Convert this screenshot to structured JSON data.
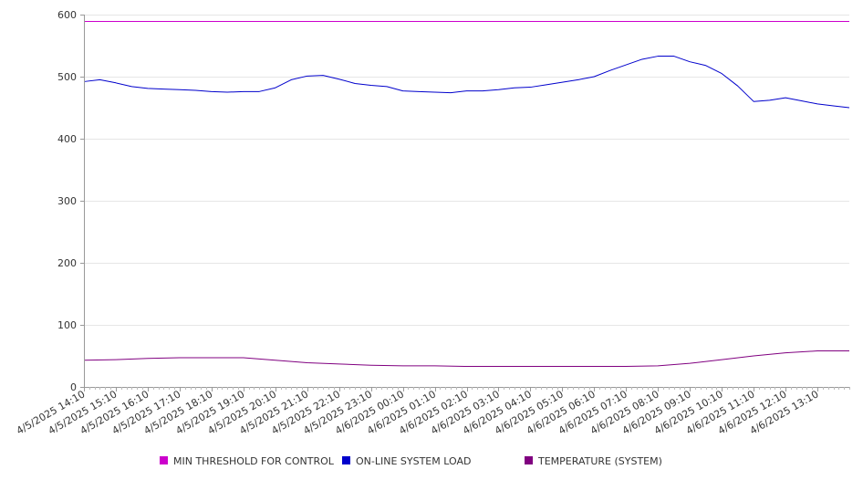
{
  "chart_data": {
    "type": "line",
    "ylim": [
      0,
      600
    ],
    "y_ticks": [
      0,
      100,
      200,
      300,
      400,
      500,
      600
    ],
    "x_range": [
      "4/5/2025 14:10",
      "4/6/2025 14:10"
    ],
    "x_tick_labels": [
      "4/5/2025 14:10",
      "4/5/2025 15:10",
      "4/5/2025 16:10",
      "4/5/2025 17:10",
      "4/5/2025 18:10",
      "4/5/2025 19:10",
      "4/5/2025 20:10",
      "4/5/2025 21:10",
      "4/5/2025 22:10",
      "4/5/2025 23:10",
      "4/6/2025 00:10",
      "4/6/2025 01:10",
      "4/6/2025 02:10",
      "4/6/2025 03:10",
      "4/6/2025 04:10",
      "4/6/2025 05:10",
      "4/6/2025 06:10",
      "4/6/2025 07:10",
      "4/6/2025 08:10",
      "4/6/2025 09:10",
      "4/6/2025 10:10",
      "4/6/2025 11:10",
      "4/6/2025 12:10",
      "4/6/2025 13:10"
    ],
    "grid": true,
    "legend_position": "bottom",
    "series": [
      {
        "name": "MIN THRESHOLD FOR CONTROL",
        "color": "#cc00cc",
        "points": [
          [
            "4/5/2025 14:10",
            589
          ],
          [
            "4/6/2025 14:10",
            589
          ]
        ]
      },
      {
        "name": "ON-LINE SYSTEM LOAD",
        "color": "#0000cc",
        "points": [
          [
            "4/5/2025 14:10",
            492
          ],
          [
            "4/5/2025 14:40",
            495
          ],
          [
            "4/5/2025 15:10",
            490
          ],
          [
            "4/5/2025 15:40",
            484
          ],
          [
            "4/5/2025 16:10",
            481
          ],
          [
            "4/5/2025 16:40",
            480
          ],
          [
            "4/5/2025 17:10",
            479
          ],
          [
            "4/5/2025 17:40",
            478
          ],
          [
            "4/5/2025 18:10",
            476
          ],
          [
            "4/5/2025 18:40",
            475
          ],
          [
            "4/5/2025 19:10",
            476
          ],
          [
            "4/5/2025 19:40",
            476
          ],
          [
            "4/5/2025 20:10",
            482
          ],
          [
            "4/5/2025 20:40",
            495
          ],
          [
            "4/5/2025 21:10",
            501
          ],
          [
            "4/5/2025 21:40",
            502
          ],
          [
            "4/5/2025 22:10",
            496
          ],
          [
            "4/5/2025 22:40",
            489
          ],
          [
            "4/5/2025 23:10",
            486
          ],
          [
            "4/5/2025 23:40",
            484
          ],
          [
            "4/6/2025 00:10",
            477
          ],
          [
            "4/6/2025 00:40",
            476
          ],
          [
            "4/6/2025 01:10",
            475
          ],
          [
            "4/6/2025 01:40",
            474
          ],
          [
            "4/6/2025 02:10",
            477
          ],
          [
            "4/6/2025 02:40",
            477
          ],
          [
            "4/6/2025 03:10",
            479
          ],
          [
            "4/6/2025 03:40",
            482
          ],
          [
            "4/6/2025 04:10",
            483
          ],
          [
            "4/6/2025 04:40",
            487
          ],
          [
            "4/6/2025 05:10",
            491
          ],
          [
            "4/6/2025 05:40",
            495
          ],
          [
            "4/6/2025 06:10",
            500
          ],
          [
            "4/6/2025 06:40",
            510
          ],
          [
            "4/6/2025 07:10",
            519
          ],
          [
            "4/6/2025 07:40",
            528
          ],
          [
            "4/6/2025 08:10",
            533
          ],
          [
            "4/6/2025 08:40",
            533
          ],
          [
            "4/6/2025 09:10",
            524
          ],
          [
            "4/6/2025 09:40",
            518
          ],
          [
            "4/6/2025 10:10",
            505
          ],
          [
            "4/6/2025 10:40",
            485
          ],
          [
            "4/6/2025 11:10",
            460
          ],
          [
            "4/6/2025 11:40",
            462
          ],
          [
            "4/6/2025 12:10",
            466
          ],
          [
            "4/6/2025 12:40",
            461
          ],
          [
            "4/6/2025 13:10",
            456
          ],
          [
            "4/6/2025 13:40",
            453
          ],
          [
            "4/6/2025 14:10",
            450
          ]
        ]
      },
      {
        "name": "TEMPERATURE (SYSTEM)",
        "color": "#800080",
        "points": [
          [
            "4/5/2025 14:10",
            43
          ],
          [
            "4/5/2025 15:10",
            44
          ],
          [
            "4/5/2025 16:10",
            46
          ],
          [
            "4/5/2025 17:10",
            47
          ],
          [
            "4/5/2025 18:10",
            47
          ],
          [
            "4/5/2025 19:10",
            47
          ],
          [
            "4/5/2025 19:40",
            45
          ],
          [
            "4/5/2025 20:10",
            43
          ],
          [
            "4/5/2025 21:10",
            39
          ],
          [
            "4/5/2025 22:10",
            37
          ],
          [
            "4/5/2025 23:10",
            35
          ],
          [
            "4/6/2025 00:10",
            34
          ],
          [
            "4/6/2025 01:10",
            34
          ],
          [
            "4/6/2025 02:10",
            33
          ],
          [
            "4/6/2025 03:10",
            33
          ],
          [
            "4/6/2025 04:10",
            33
          ],
          [
            "4/6/2025 05:10",
            33
          ],
          [
            "4/6/2025 06:10",
            33
          ],
          [
            "4/6/2025 07:10",
            33
          ],
          [
            "4/6/2025 08:10",
            34
          ],
          [
            "4/6/2025 09:10",
            38
          ],
          [
            "4/6/2025 10:10",
            44
          ],
          [
            "4/6/2025 11:10",
            50
          ],
          [
            "4/6/2025 12:10",
            55
          ],
          [
            "4/6/2025 13:10",
            58
          ],
          [
            "4/6/2025 14:10",
            58
          ]
        ]
      }
    ]
  }
}
